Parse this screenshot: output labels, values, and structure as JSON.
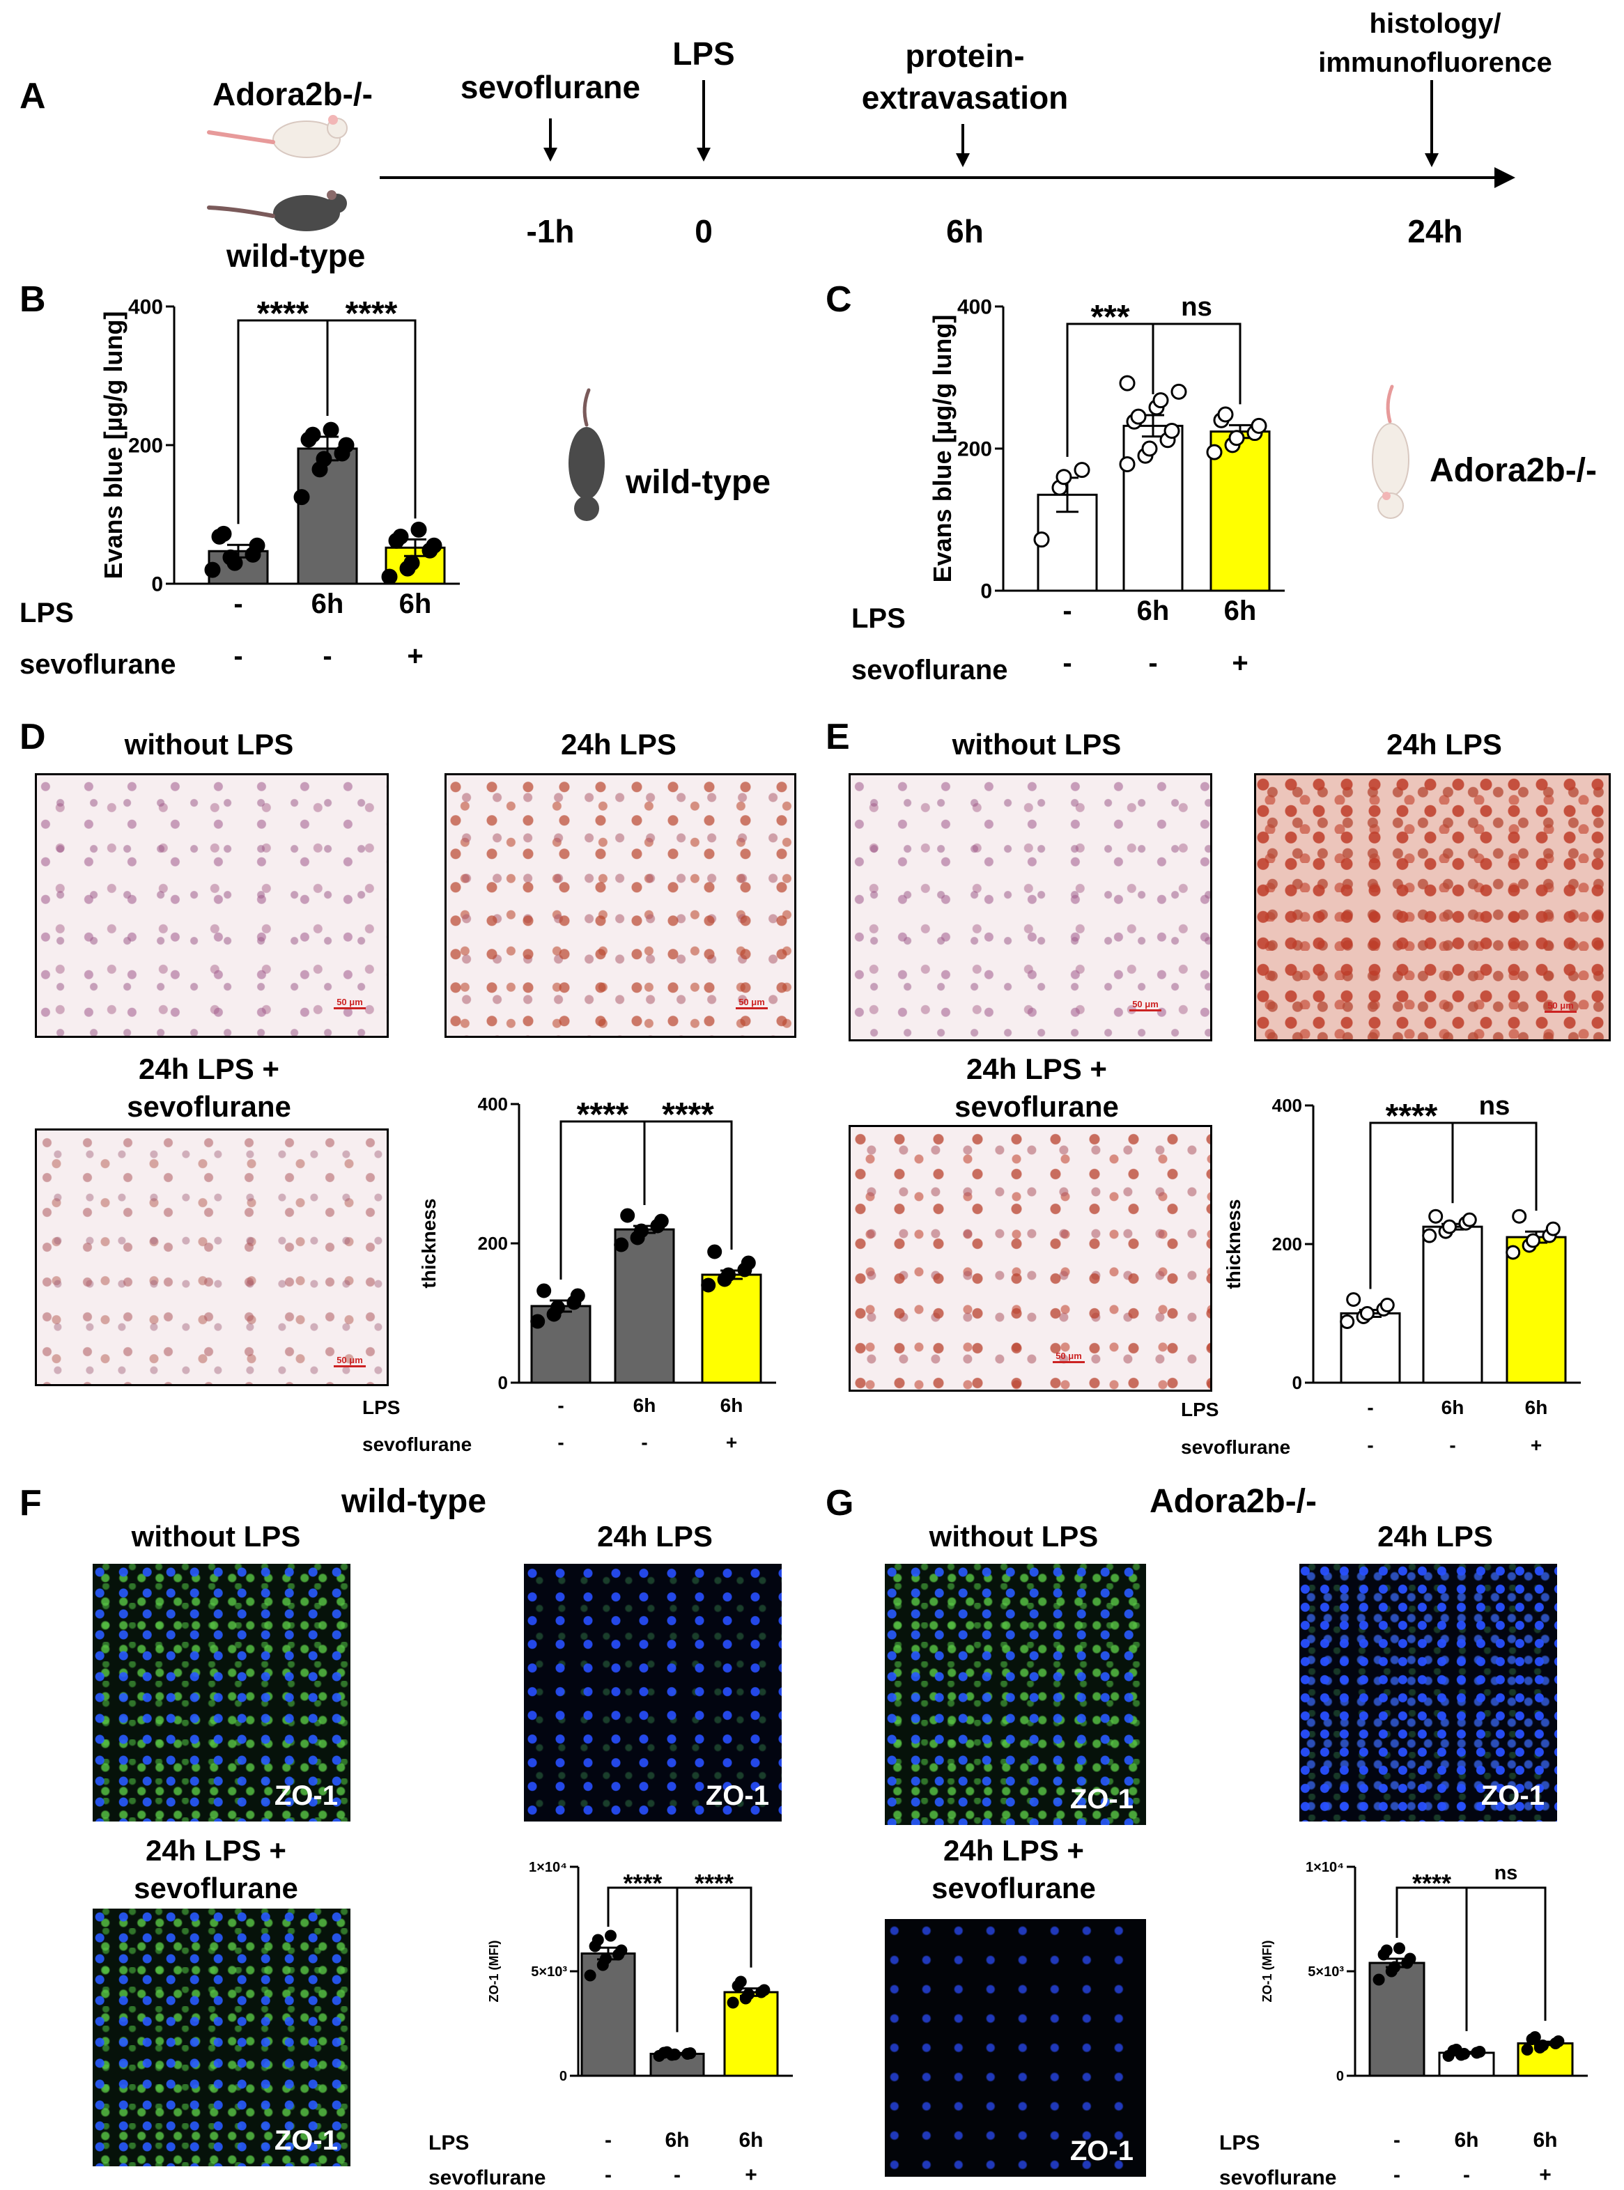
{
  "panel_letters": {
    "a": "A",
    "b": "B",
    "c": "C",
    "d": "D",
    "e": "E",
    "f": "F",
    "g": "G"
  },
  "timeline": {
    "strain_top": "Adora2b-/-",
    "strain_bottom": "wild-type",
    "events": [
      {
        "label": "sevoflurane",
        "time": "-1h"
      },
      {
        "label": "LPS",
        "time": "0"
      },
      {
        "label_lines": [
          "protein-",
          "extravasation"
        ],
        "time": "6h"
      },
      {
        "label_lines": [
          "histology/",
          "immunofluorence"
        ],
        "time": "24h"
      }
    ]
  },
  "row_labels": {
    "lps": "LPS",
    "sevo": "sevoflurane"
  },
  "mouse_labels": {
    "wt": "wild-type",
    "ko": "Adora2b-/-"
  },
  "histology": {
    "without": "without LPS",
    "lps24": "24h LPS",
    "lps_sevo_lines": [
      "24h LPS +",
      "sevoflurane"
    ],
    "scale_bar": "50 μm"
  },
  "fluorescence": {
    "titles": {
      "f": "wild-type",
      "g": "Adora2b-/-"
    },
    "without": "without LPS",
    "lps24": "24h LPS",
    "lps_sevo_lines": [
      "24h LPS +",
      "sevoflurane"
    ],
    "marker": "ZO-1"
  },
  "colors": {
    "wt_bar": "#666666",
    "ko_bar": "#ffffff",
    "sevo_bar": "#ffff00",
    "axis": "#000000"
  },
  "chart_data": [
    {
      "id": "B",
      "type": "bar",
      "ylabel": "Evans blue [µg/g lung]",
      "ylim": [
        0,
        400
      ],
      "yticks": [
        0,
        200,
        400
      ],
      "categories": [
        "-",
        "6h",
        "6h"
      ],
      "row_lps": [
        "-",
        "6h",
        "6h"
      ],
      "row_sevo": [
        "-",
        "-",
        "+"
      ],
      "values": [
        47,
        195,
        52
      ],
      "errors": [
        9,
        17,
        12
      ],
      "fills": [
        "#666666",
        "#666666",
        "#ffff00"
      ],
      "dot_fill": "#000000",
      "points": [
        [
          20,
          38,
          30,
          42,
          55,
          68,
          72
        ],
        [
          125,
          165,
          180,
          188,
          200,
          208,
          215,
          222
        ],
        [
          10,
          22,
          30,
          48,
          55,
          62,
          68,
          78
        ]
      ],
      "significance": [
        {
          "from": 0,
          "to": 1,
          "label": "****"
        },
        {
          "from": 1,
          "to": 2,
          "label": "****"
        }
      ]
    },
    {
      "id": "C",
      "type": "bar",
      "ylabel": "Evans blue [µg/g lung]",
      "ylim": [
        0,
        400
      ],
      "yticks": [
        0,
        200,
        400
      ],
      "categories": [
        "-",
        "6h",
        "6h"
      ],
      "row_lps": [
        "-",
        "6h",
        "6h"
      ],
      "row_sevo": [
        "-",
        "-",
        "+"
      ],
      "values": [
        135,
        232,
        224
      ],
      "errors": [
        24,
        15,
        9
      ],
      "fills": [
        "#ffffff",
        "#ffffff",
        "#ffff00"
      ],
      "dot_fill": "#ffffff",
      "points": [
        [
          72,
          145,
          160,
          170
        ],
        [
          178,
          190,
          200,
          212,
          225,
          238,
          245,
          258,
          268,
          280,
          292
        ],
        [
          195,
          205,
          215,
          222,
          232,
          240,
          248
        ]
      ],
      "significance": [
        {
          "from": 0,
          "to": 1,
          "label": "***"
        },
        {
          "from": 1,
          "to": 2,
          "label": "ns"
        }
      ]
    },
    {
      "id": "D",
      "type": "bar",
      "ylabel": "thickness",
      "ylim": [
        0,
        400
      ],
      "yticks": [
        0,
        200,
        400
      ],
      "categories": [
        "-",
        "6h",
        "6h"
      ],
      "row_lps": [
        "-",
        "6h",
        "6h"
      ],
      "row_sevo": [
        "-",
        "-",
        "+"
      ],
      "values": [
        110,
        220,
        155
      ],
      "errors": [
        8,
        5,
        6
      ],
      "fills": [
        "#666666",
        "#666666",
        "#ffff00"
      ],
      "dot_fill": "#000000",
      "points": [
        [
          88,
          98,
          108,
          115,
          125,
          132
        ],
        [
          198,
          208,
          218,
          225,
          232,
          240
        ],
        [
          140,
          148,
          155,
          162,
          172,
          188
        ]
      ],
      "significance": [
        {
          "from": 0,
          "to": 1,
          "label": "****"
        },
        {
          "from": 1,
          "to": 2,
          "label": "****"
        }
      ]
    },
    {
      "id": "E",
      "type": "bar",
      "ylabel": "thickness",
      "ylim": [
        0,
        400
      ],
      "yticks": [
        0,
        200,
        400
      ],
      "categories": [
        "-",
        "6h",
        "6h"
      ],
      "row_lps": [
        "-",
        "6h",
        "6h"
      ],
      "row_sevo": [
        "-",
        "-",
        "+"
      ],
      "values": [
        100,
        225,
        210
      ],
      "errors": [
        5,
        4,
        8
      ],
      "fills": [
        "#ffffff",
        "#ffffff",
        "#ffff00"
      ],
      "dot_fill": "#ffffff",
      "points": [
        [
          88,
          95,
          100,
          106,
          112,
          120
        ],
        [
          212,
          218,
          225,
          230,
          235,
          240
        ],
        [
          188,
          198,
          205,
          212,
          222,
          240
        ]
      ],
      "significance": [
        {
          "from": 0,
          "to": 1,
          "label": "****"
        },
        {
          "from": 1,
          "to": 2,
          "label": "ns"
        }
      ]
    },
    {
      "id": "F",
      "type": "bar",
      "ylabel": "ZO-1 (MFI)",
      "ylim": [
        0,
        10000
      ],
      "yticks": [
        0,
        5000,
        10000
      ],
      "yticklabels": [
        "0",
        "5×10³",
        "1×10⁴"
      ],
      "categories": [
        "-",
        "6h",
        "6h"
      ],
      "row_lps": [
        "-",
        "6h",
        "6h"
      ],
      "row_sevo": [
        "-",
        "-",
        "+"
      ],
      "values": [
        5850,
        1050,
        4000
      ],
      "errors": [
        280,
        40,
        180
      ],
      "fills": [
        "#666666",
        "#666666",
        "#ffff00"
      ],
      "dot_fill": "#000000",
      "points": [
        [
          4800,
          5300,
          5600,
          5800,
          6000,
          6200,
          6500,
          6700
        ],
        [
          950,
          1000,
          1020,
          1050,
          1080,
          1100,
          1130
        ],
        [
          3500,
          3700,
          3900,
          4000,
          4100,
          4300,
          4500
        ]
      ],
      "significance": [
        {
          "from": 0,
          "to": 1,
          "label": "****"
        },
        {
          "from": 1,
          "to": 2,
          "label": "****"
        }
      ]
    },
    {
      "id": "G",
      "type": "bar",
      "ylabel": "ZO-1 (MFI)",
      "ylim": [
        0,
        10000
      ],
      "yticks": [
        0,
        5000,
        10000
      ],
      "yticklabels": [
        "0",
        "5×10³",
        "1×10⁴"
      ],
      "categories": [
        "-",
        "6h",
        "6h"
      ],
      "row_lps": [
        "-",
        "6h",
        "6h"
      ],
      "row_sevo": [
        "-",
        "-",
        "+"
      ],
      "values": [
        5400,
        1100,
        1550
      ],
      "errors": [
        200,
        40,
        80
      ],
      "fills": [
        "#666666",
        "#ffffff",
        "#ffff00"
      ],
      "dot_fill": "#000000",
      "points": [
        [
          4600,
          5000,
          5200,
          5400,
          5600,
          5800,
          6000,
          6100
        ],
        [
          950,
          1000,
          1050,
          1100,
          1150,
          1200,
          1250
        ],
        [
          1250,
          1350,
          1450,
          1550,
          1650,
          1750,
          1850
        ]
      ],
      "significance": [
        {
          "from": 0,
          "to": 1,
          "label": "****"
        },
        {
          "from": 1,
          "to": 2,
          "label": "ns"
        }
      ]
    }
  ]
}
